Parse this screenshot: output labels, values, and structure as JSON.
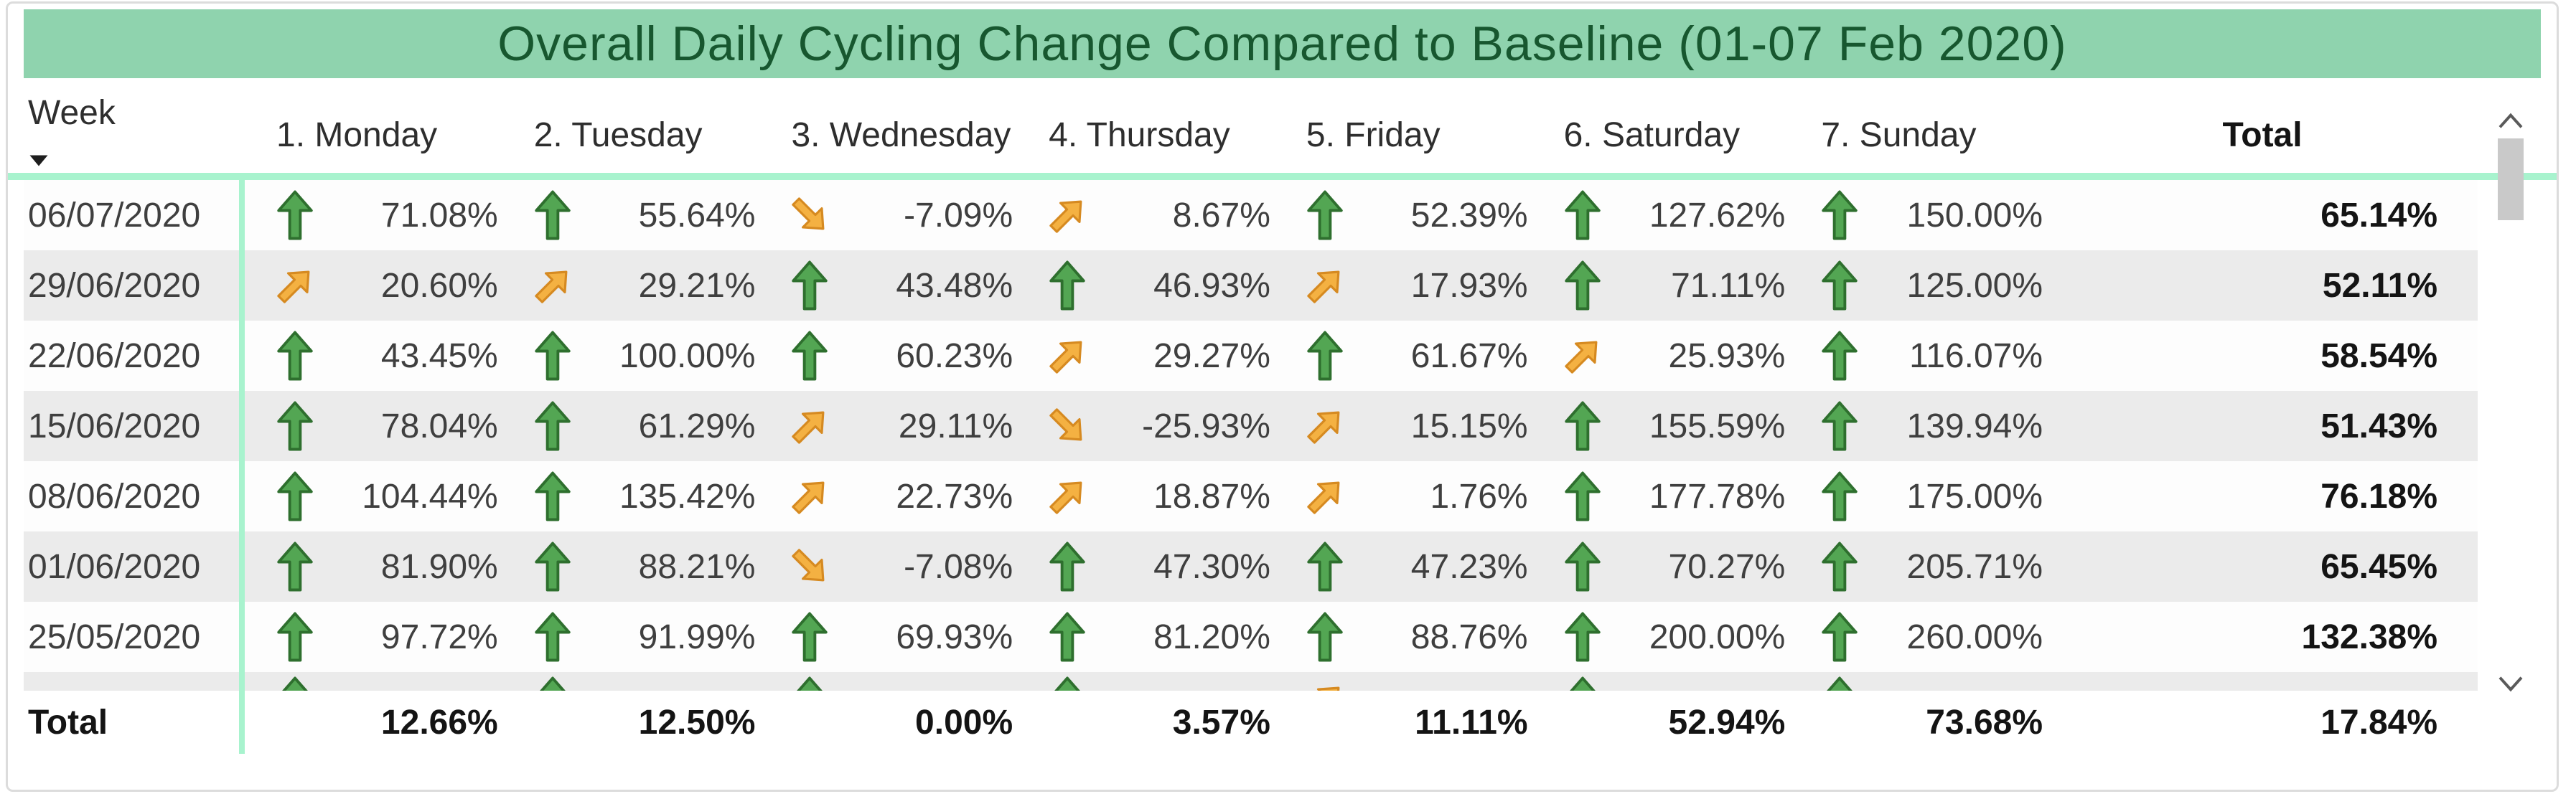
{
  "chart_data": {
    "type": "table",
    "title": "Overall Daily Cycling Change Compared to Baseline (01-07 Feb 2020)",
    "value_format": "percent_2dp",
    "columns": [
      "Week",
      "1. Monday",
      "2. Tuesday",
      "3. Wednesday",
      "4. Thursday",
      "5. Friday",
      "6. Saturday",
      "7. Sunday",
      "Total"
    ],
    "sort": {
      "column": "Week",
      "direction": "descending"
    },
    "rows": [
      {
        "week": "06/07/2020",
        "values": [
          71.08,
          55.64,
          -7.09,
          8.67,
          52.39,
          127.62,
          150.0
        ],
        "trends": [
          "up",
          "up",
          "down-right",
          "up-right",
          "up",
          "up",
          "up"
        ],
        "total": 65.14
      },
      {
        "week": "29/06/2020",
        "values": [
          20.6,
          29.21,
          43.48,
          46.93,
          17.93,
          71.11,
          125.0
        ],
        "trends": [
          "up-right",
          "up-right",
          "up",
          "up",
          "up-right",
          "up",
          "up"
        ],
        "total": 52.11
      },
      {
        "week": "22/06/2020",
        "values": [
          43.45,
          100.0,
          60.23,
          29.27,
          61.67,
          25.93,
          116.07
        ],
        "trends": [
          "up",
          "up",
          "up",
          "up-right",
          "up",
          "up-right",
          "up"
        ],
        "total": 58.54
      },
      {
        "week": "15/06/2020",
        "values": [
          78.04,
          61.29,
          29.11,
          -25.93,
          15.15,
          155.59,
          139.94
        ],
        "trends": [
          "up",
          "up",
          "up-right",
          "down-right",
          "up-right",
          "up",
          "up"
        ],
        "total": 51.43
      },
      {
        "week": "08/06/2020",
        "values": [
          104.44,
          135.42,
          22.73,
          18.87,
          1.76,
          177.78,
          175.0
        ],
        "trends": [
          "up",
          "up",
          "up-right",
          "up-right",
          "up-right",
          "up",
          "up"
        ],
        "total": 76.18
      },
      {
        "week": "01/06/2020",
        "values": [
          81.9,
          88.21,
          -7.08,
          47.3,
          47.23,
          70.27,
          205.71
        ],
        "trends": [
          "up",
          "up",
          "down-right",
          "up",
          "up",
          "up",
          "up"
        ],
        "total": 65.45
      },
      {
        "week": "25/05/2020",
        "values": [
          97.72,
          91.99,
          69.93,
          81.2,
          88.76,
          200.0,
          260.0
        ],
        "trends": [
          "up",
          "up",
          "up",
          "up",
          "up",
          "up",
          "up"
        ],
        "total": 132.38
      }
    ],
    "partial_row_trends": [
      "up",
      "up",
      "up",
      "up",
      "up-right",
      "up",
      "up"
    ],
    "total_row": {
      "label": "Total",
      "values": [
        12.66,
        12.5,
        0.0,
        3.57,
        11.11,
        52.94,
        73.68
      ],
      "total": 17.84
    }
  },
  "ui": {
    "icons": {
      "trend_up": "arrow-up",
      "trend_up_right": "arrow-up-right",
      "trend_down_right": "arrow-down-right",
      "week_sort": "triangle-down",
      "scroll_up": "chevron-up",
      "scroll_down": "chevron-down"
    }
  },
  "colors": {
    "title_bg": "#8FD3AE",
    "title_text": "#17572F",
    "mint_separator": "#A8F3CE",
    "row_bg": "#FDFDFD",
    "row_alt_bg": "#EBEBEB",
    "header_text": "#2E2E2E",
    "value_text": "#3F3F3F",
    "total_text": "#141414",
    "trend_up_fill": "#53A653",
    "trend_up_stroke": "#2E6F2E",
    "trend_diag_fill": "#F4B142",
    "trend_diag_stroke": "#D68A21",
    "scroll_thumb": "#C9C9C9",
    "scroll_chevron": "#5A5A5A",
    "card_border": "#DCDCDC"
  }
}
